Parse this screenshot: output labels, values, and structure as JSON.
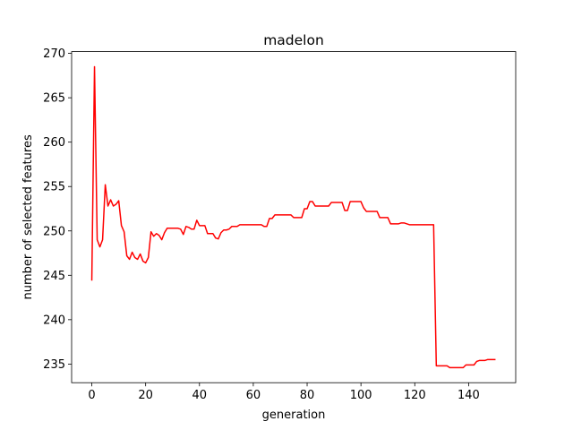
{
  "chart_data": {
    "type": "line",
    "title": "madelon",
    "xlabel": "generation",
    "ylabel": "number of selected features",
    "x": [
      0,
      1,
      2,
      3,
      4,
      5,
      6,
      7,
      8,
      9,
      10,
      11,
      12,
      13,
      14,
      15,
      16,
      17,
      18,
      19,
      20,
      21,
      22,
      23,
      24,
      25,
      26,
      27,
      28,
      29,
      30,
      31,
      32,
      33,
      34,
      35,
      36,
      37,
      38,
      39,
      40,
      41,
      42,
      43,
      44,
      45,
      46,
      47,
      48,
      49,
      50,
      51,
      52,
      53,
      54,
      55,
      56,
      57,
      58,
      59,
      60,
      61,
      62,
      63,
      64,
      65,
      66,
      67,
      68,
      69,
      70,
      71,
      72,
      73,
      74,
      75,
      76,
      77,
      78,
      79,
      80,
      81,
      82,
      83,
      84,
      85,
      86,
      87,
      88,
      89,
      90,
      91,
      92,
      93,
      94,
      95,
      96,
      97,
      98,
      99,
      100,
      101,
      102,
      103,
      104,
      105,
      106,
      107,
      108,
      109,
      110,
      111,
      112,
      113,
      114,
      115,
      116,
      117,
      118,
      119,
      120,
      121,
      122,
      123,
      124,
      125,
      126,
      127,
      128,
      129,
      130,
      131,
      132,
      133,
      134,
      135,
      136,
      137,
      138,
      139,
      140,
      141,
      142,
      143,
      144,
      145,
      146,
      147,
      148,
      149,
      150
    ],
    "series": [
      {
        "name": "features",
        "color": "#ff0000",
        "values": [
          244.4,
          268.5,
          249,
          248.2,
          249,
          255.2,
          252.8,
          253.5,
          252.8,
          253,
          253.4,
          250.6,
          249.9,
          247.2,
          246.8,
          247.6,
          247,
          246.8,
          247.4,
          246.6,
          246.4,
          247,
          249.9,
          249.4,
          249.7,
          249.5,
          249,
          249.8,
          250.3,
          250.3,
          250.3,
          250.3,
          250.3,
          250.2,
          249.6,
          250.5,
          250.4,
          250.2,
          250.2,
          251.2,
          250.6,
          250.6,
          250.6,
          249.7,
          249.7,
          249.7,
          249.2,
          249.1,
          249.8,
          250.1,
          250.1,
          250.2,
          250.5,
          250.5,
          250.5,
          250.7,
          250.7,
          250.7,
          250.7,
          250.7,
          250.7,
          250.7,
          250.7,
          250.7,
          250.5,
          250.5,
          251.4,
          251.4,
          251.8,
          251.8,
          251.8,
          251.8,
          251.8,
          251.8,
          251.8,
          251.5,
          251.5,
          251.5,
          251.5,
          252.5,
          252.5,
          253.3,
          253.3,
          252.8,
          252.8,
          252.8,
          252.8,
          252.8,
          252.8,
          253.2,
          253.2,
          253.2,
          253.2,
          253.2,
          252.3,
          252.3,
          253.3,
          253.3,
          253.3,
          253.3,
          253.3,
          252.6,
          252.2,
          252.2,
          252.2,
          252.2,
          252.2,
          251.5,
          251.5,
          251.5,
          251.5,
          250.8,
          250.8,
          250.8,
          250.8,
          250.9,
          250.9,
          250.8,
          250.7,
          250.7,
          250.7,
          250.7,
          250.7,
          250.7,
          250.7,
          250.7,
          250.7,
          250.7,
          234.8,
          234.8,
          234.8,
          234.8,
          234.8,
          234.6,
          234.6,
          234.6,
          234.6,
          234.6,
          234.6,
          234.9,
          234.9,
          234.9,
          234.9,
          235.3,
          235.4,
          235.4,
          235.4,
          235.5,
          235.5,
          235.5,
          235.5
        ]
      }
    ],
    "xlim": [
      -7.5,
      157.5
    ],
    "xticks": [
      0,
      20,
      40,
      60,
      80,
      100,
      120,
      140
    ],
    "ylim": [
      232.9,
      270.2
    ],
    "yticks": [
      235,
      240,
      245,
      250,
      255,
      260,
      265,
      270
    ]
  }
}
